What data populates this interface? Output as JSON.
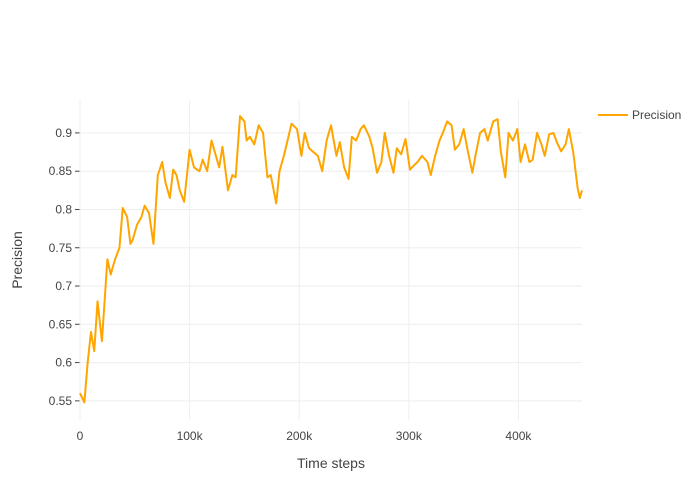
{
  "chart_data": {
    "type": "line",
    "x_label": "Time steps",
    "y_label": "Precision",
    "xlim": [
      0,
      458000
    ],
    "ylim": [
      0.525,
      0.943
    ],
    "xticks": [
      0,
      {
        "value": 100000,
        "label": "100k"
      },
      {
        "value": 200000,
        "label": "200k"
      },
      {
        "value": 300000,
        "label": "300k"
      },
      {
        "value": 400000,
        "label": "400k"
      }
    ],
    "yticks": [
      0.55,
      0.6,
      0.65,
      0.7,
      0.75,
      0.8,
      0.85,
      0.9
    ],
    "grid": true,
    "legend": "top-right",
    "x": [
      0,
      4000,
      7000,
      10000,
      13000,
      16000,
      20000,
      25000,
      28000,
      32000,
      36000,
      39000,
      43000,
      46000,
      48000,
      52000,
      56000,
      59000,
      63000,
      67000,
      71000,
      75000,
      78000,
      82000,
      85000,
      88000,
      91000,
      95000,
      100000,
      104000,
      109000,
      112000,
      116000,
      120000,
      123000,
      127000,
      130000,
      135000,
      139000,
      142000,
      146000,
      150000,
      152000,
      155000,
      159000,
      163000,
      167000,
      171000,
      174000,
      179000,
      182000,
      186000,
      191000,
      193000,
      198000,
      202000,
      205000,
      209000,
      213000,
      217000,
      221000,
      225000,
      229000,
      234000,
      237000,
      241000,
      245000,
      248000,
      252000,
      256000,
      259000,
      264000,
      267000,
      271000,
      275000,
      278000,
      282000,
      286000,
      289000,
      293000,
      297000,
      301000,
      305000,
      308000,
      312000,
      317000,
      320000,
      324000,
      328000,
      331000,
      335000,
      339000,
      342000,
      346000,
      350000,
      354000,
      358000,
      361000,
      365000,
      369000,
      372000,
      377000,
      381000,
      384000,
      388000,
      391000,
      395000,
      399000,
      402000,
      406000,
      410000,
      413000,
      417000,
      421000,
      424000,
      428000,
      432000,
      435000,
      439000,
      443000,
      446000,
      450000,
      454000,
      456000,
      458000
    ],
    "series": [
      {
        "name": "Precision",
        "color": "#ffa500",
        "values": [
          0.56,
          0.548,
          0.6,
          0.64,
          0.615,
          0.68,
          0.628,
          0.735,
          0.715,
          0.735,
          0.75,
          0.802,
          0.79,
          0.755,
          0.76,
          0.78,
          0.79,
          0.805,
          0.795,
          0.755,
          0.845,
          0.862,
          0.835,
          0.815,
          0.852,
          0.845,
          0.825,
          0.81,
          0.878,
          0.855,
          0.85,
          0.865,
          0.85,
          0.89,
          0.875,
          0.855,
          0.882,
          0.825,
          0.845,
          0.842,
          0.922,
          0.915,
          0.89,
          0.895,
          0.885,
          0.91,
          0.9,
          0.842,
          0.845,
          0.808,
          0.85,
          0.87,
          0.9,
          0.912,
          0.905,
          0.87,
          0.9,
          0.88,
          0.875,
          0.87,
          0.85,
          0.89,
          0.91,
          0.87,
          0.888,
          0.855,
          0.84,
          0.895,
          0.89,
          0.905,
          0.91,
          0.895,
          0.88,
          0.848,
          0.862,
          0.9,
          0.87,
          0.848,
          0.88,
          0.872,
          0.892,
          0.852,
          0.858,
          0.862,
          0.87,
          0.862,
          0.845,
          0.87,
          0.89,
          0.9,
          0.915,
          0.91,
          0.878,
          0.885,
          0.905,
          0.875,
          0.848,
          0.872,
          0.9,
          0.905,
          0.89,
          0.915,
          0.918,
          0.875,
          0.842,
          0.9,
          0.89,
          0.905,
          0.862,
          0.885,
          0.862,
          0.865,
          0.9,
          0.885,
          0.87,
          0.898,
          0.9,
          0.888,
          0.876,
          0.885,
          0.905,
          0.875,
          0.828,
          0.815,
          0.825
        ]
      }
    ]
  }
}
